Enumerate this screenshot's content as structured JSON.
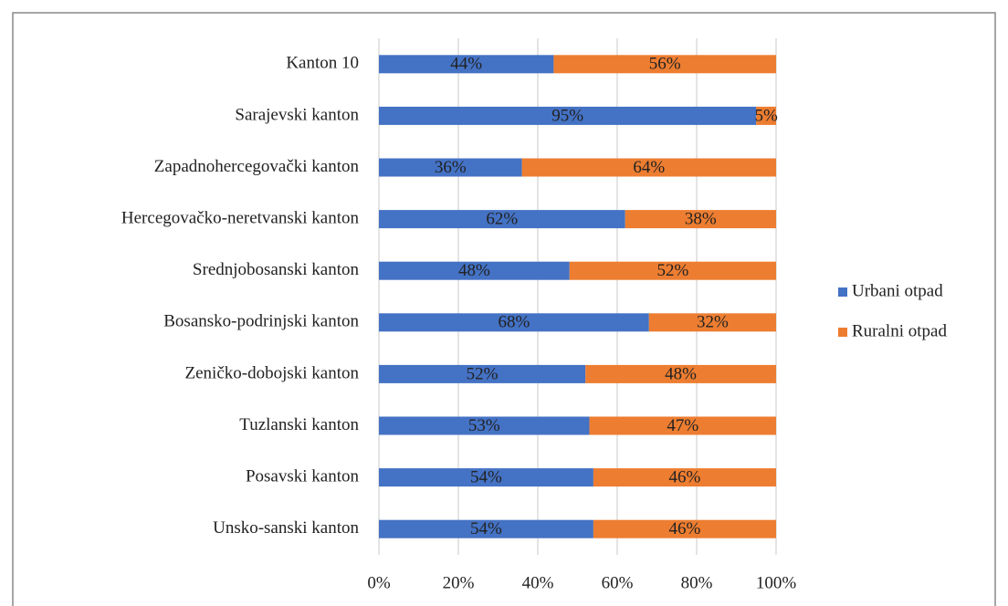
{
  "chart_data": {
    "type": "stacked-bar-horizontal",
    "categories": [
      "Kanton 10",
      "Sarajevski kanton",
      "Zapadnohercegovački kanton",
      "Hercegovačko-neretvanski kanton",
      "Srednjobosanski kanton",
      "Bosansko-podrinjski kanton",
      "Zeničko-dobojski kanton",
      "Tuzlanski kanton",
      "Posavski kanton",
      "Unsko-sanski kanton"
    ],
    "series": [
      {
        "name": "Urbani otpad",
        "color": "#4472c4",
        "values": [
          44,
          95,
          36,
          62,
          48,
          68,
          52,
          53,
          54,
          54
        ],
        "value_labels": [
          "44%",
          "95%",
          "36%",
          "62%",
          "48%",
          "68%",
          "52%",
          "53%",
          "54%",
          "54%"
        ]
      },
      {
        "name": "Ruralni otpad",
        "color": "#ed7d31",
        "values": [
          56,
          5,
          64,
          38,
          52,
          32,
          48,
          47,
          46,
          46
        ],
        "value_labels": [
          "56%",
          "5%",
          "64%",
          "38%",
          "52%",
          "32%",
          "48%",
          "47%",
          "46%",
          "46%"
        ]
      }
    ],
    "xlim": [
      0,
      100
    ],
    "xticks": [
      {
        "value": 0,
        "label": "0%"
      },
      {
        "value": 20,
        "label": "20%"
      },
      {
        "value": 40,
        "label": "40%"
      },
      {
        "value": 60,
        "label": "60%"
      },
      {
        "value": 80,
        "label": "80%"
      },
      {
        "value": 100,
        "label": "100%"
      }
    ],
    "grid": true,
    "legend": "right"
  }
}
